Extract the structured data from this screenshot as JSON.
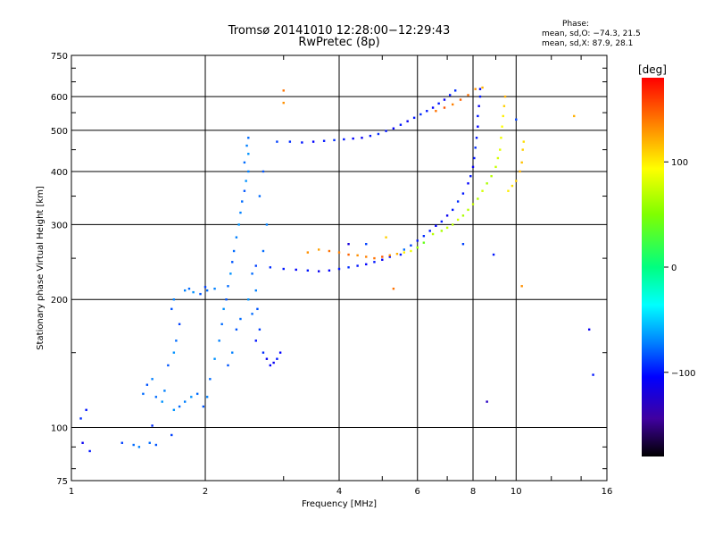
{
  "chart_data": {
    "type": "scatter",
    "title": "Tromsø 20141010 12:28:00−12:29:43",
    "subtitle": "RwPretec (8p)",
    "xlabel": "Frequency [MHz]",
    "ylabel": "Stationary phase Virtual Height [km]",
    "x_scale": "log",
    "y_scale": "log",
    "xlim": [
      1,
      16
    ],
    "ylim": [
      75,
      750
    ],
    "grid": true,
    "x_ticks": [
      1,
      2,
      4,
      6,
      8,
      10,
      16
    ],
    "x_tick_labels": [
      "1",
      "2",
      "4",
      "6",
      "8",
      "10",
      "16"
    ],
    "y_ticks": [
      75,
      100,
      200,
      300,
      400,
      500,
      600,
      750
    ],
    "y_tick_labels": [
      "75",
      "100",
      "200",
      "300",
      "400",
      "500",
      "600",
      "750"
    ],
    "colorbar": {
      "label": "[deg]",
      "range": [
        -180,
        180
      ],
      "tick_values": [
        100,
        0,
        -100
      ],
      "tick_labels": [
        "100",
        "0",
        "−100"
      ],
      "colors": [
        "#ff0000",
        "#ff8000",
        "#ffff00",
        "#80ff00",
        "#00ff80",
        "#00ffff",
        "#0080ff",
        "#0000ff",
        "#4000a0",
        "#000000"
      ]
    },
    "phase_stats": {
      "heading": "Phase:",
      "o_mode": "mean, sd,O: −74.3, 21.5",
      "x_mode": "mean, sd,X:  87.9, 28.1"
    },
    "series": [
      {
        "points": [
          [
            1.05,
            105,
            -95
          ],
          [
            1.08,
            110,
            -100
          ],
          [
            1.06,
            92,
            -110
          ],
          [
            1.1,
            88,
            -100
          ],
          [
            1.3,
            92,
            -90
          ],
          [
            1.38,
            91,
            -80
          ],
          [
            1.42,
            90,
            -75
          ],
          [
            1.5,
            92,
            -80
          ],
          [
            1.55,
            91,
            -85
          ],
          [
            1.68,
            96,
            -90
          ],
          [
            1.52,
            101,
            -95
          ],
          [
            1.45,
            120,
            -80
          ],
          [
            1.48,
            126,
            -85
          ],
          [
            1.52,
            130,
            -75
          ],
          [
            1.55,
            118,
            -80
          ],
          [
            1.6,
            115,
            -70
          ],
          [
            1.62,
            122,
            -75
          ],
          [
            1.65,
            140,
            -85
          ],
          [
            1.7,
            150,
            -70
          ],
          [
            1.72,
            160,
            -80
          ],
          [
            1.75,
            175,
            -90
          ],
          [
            1.68,
            190,
            -85
          ],
          [
            1.7,
            200,
            -75
          ],
          [
            1.8,
            210,
            -75
          ],
          [
            1.84,
            212,
            -80
          ],
          [
            1.88,
            208,
            -70
          ],
          [
            1.95,
            206,
            -85
          ],
          [
            2.02,
            210,
            -80
          ],
          [
            2.1,
            212,
            -75
          ],
          [
            2.0,
            214,
            -90
          ],
          [
            1.7,
            110,
            -70
          ],
          [
            1.75,
            112,
            -80
          ],
          [
            1.8,
            115,
            -75
          ],
          [
            1.86,
            118,
            -70
          ],
          [
            1.92,
            120,
            -80
          ],
          [
            1.98,
            112,
            -85
          ],
          [
            2.02,
            118,
            -75
          ],
          [
            2.05,
            130,
            -80
          ],
          [
            2.1,
            145,
            -70
          ],
          [
            2.15,
            160,
            -75
          ],
          [
            2.18,
            175,
            -80
          ],
          [
            2.2,
            190,
            -70
          ],
          [
            2.23,
            200,
            -85
          ],
          [
            2.25,
            215,
            -80
          ],
          [
            2.28,
            230,
            -70
          ],
          [
            2.3,
            245,
            -85
          ],
          [
            2.32,
            260,
            -80
          ],
          [
            2.35,
            280,
            -75
          ],
          [
            2.38,
            300,
            -70
          ],
          [
            2.4,
            320,
            -75
          ],
          [
            2.42,
            340,
            -80
          ],
          [
            2.45,
            360,
            -85
          ],
          [
            2.47,
            380,
            -70
          ],
          [
            2.5,
            400,
            -75
          ],
          [
            2.45,
            420,
            -80
          ],
          [
            2.5,
            440,
            -70
          ],
          [
            2.48,
            460,
            -75
          ],
          [
            2.5,
            480,
            -80
          ],
          [
            2.55,
            230,
            -80
          ],
          [
            2.6,
            210,
            -75
          ],
          [
            2.62,
            190,
            -85
          ],
          [
            2.65,
            170,
            -90
          ],
          [
            2.6,
            160,
            -100
          ],
          [
            2.7,
            150,
            -95
          ],
          [
            2.75,
            145,
            -110
          ],
          [
            2.8,
            140,
            -105
          ],
          [
            2.85,
            142,
            -110
          ],
          [
            2.9,
            145,
            -100
          ],
          [
            2.95,
            150,
            -105
          ],
          [
            2.7,
            260,
            -80
          ],
          [
            2.75,
            300,
            -75
          ],
          [
            2.65,
            350,
            -80
          ],
          [
            2.7,
            400,
            -85
          ],
          [
            2.35,
            170,
            -85
          ],
          [
            2.4,
            180,
            -80
          ],
          [
            2.3,
            150,
            -75
          ],
          [
            2.25,
            140,
            -85
          ],
          [
            2.55,
            185,
            -80
          ],
          [
            2.5,
            200,
            -70
          ],
          [
            2.6,
            240,
            -90
          ],
          [
            2.8,
            238,
            -95
          ],
          [
            3.0,
            236,
            -100
          ],
          [
            3.2,
            235,
            -105
          ],
          [
            3.4,
            234,
            -100
          ],
          [
            3.6,
            233,
            -110
          ],
          [
            3.8,
            234,
            -105
          ],
          [
            4.0,
            236,
            -100
          ],
          [
            4.2,
            238,
            -95
          ],
          [
            4.4,
            240,
            -100
          ],
          [
            4.6,
            242,
            -105
          ],
          [
            4.8,
            245,
            -100
          ],
          [
            5.0,
            248,
            -110
          ],
          [
            5.2,
            252,
            -105
          ],
          [
            5.5,
            255,
            -100
          ],
          [
            3.4,
            258,
            130
          ],
          [
            3.6,
            262,
            125
          ],
          [
            3.8,
            260,
            140
          ],
          [
            4.0,
            258,
            135
          ],
          [
            4.2,
            255,
            145
          ],
          [
            4.4,
            254,
            130
          ],
          [
            4.6,
            252,
            135
          ],
          [
            4.8,
            250,
            140
          ],
          [
            5.0,
            252,
            150
          ],
          [
            5.2,
            254,
            130
          ],
          [
            5.4,
            256,
            120
          ],
          [
            5.6,
            258,
            100
          ],
          [
            5.8,
            260,
            90
          ],
          [
            6.0,
            265,
            60
          ],
          [
            6.2,
            272,
            40
          ],
          [
            5.6,
            262,
            -80
          ],
          [
            5.8,
            268,
            -90
          ],
          [
            6.0,
            275,
            -100
          ],
          [
            6.2,
            282,
            -95
          ],
          [
            6.4,
            290,
            -100
          ],
          [
            6.6,
            298,
            -105
          ],
          [
            6.8,
            305,
            -100
          ],
          [
            7.0,
            315,
            -110
          ],
          [
            7.2,
            325,
            -100
          ],
          [
            7.4,
            340,
            -95
          ],
          [
            7.6,
            355,
            -100
          ],
          [
            7.8,
            375,
            -105
          ],
          [
            7.9,
            390,
            -100
          ],
          [
            8.0,
            410,
            -110
          ],
          [
            8.05,
            430,
            -100
          ],
          [
            8.1,
            455,
            -95
          ],
          [
            8.15,
            480,
            -100
          ],
          [
            8.2,
            510,
            -105
          ],
          [
            8.2,
            540,
            -100
          ],
          [
            8.25,
            570,
            -110
          ],
          [
            8.3,
            600,
            -100
          ],
          [
            8.3,
            625,
            -105
          ],
          [
            6.5,
            285,
            70
          ],
          [
            6.8,
            290,
            65
          ],
          [
            7.0,
            295,
            75
          ],
          [
            7.2,
            300,
            70
          ],
          [
            7.4,
            308,
            80
          ],
          [
            7.6,
            315,
            65
          ],
          [
            7.8,
            325,
            70
          ],
          [
            8.0,
            335,
            75
          ],
          [
            8.2,
            345,
            70
          ],
          [
            8.4,
            360,
            80
          ],
          [
            8.6,
            375,
            65
          ],
          [
            8.8,
            390,
            70
          ],
          [
            9.0,
            410,
            75
          ],
          [
            9.1,
            430,
            80
          ],
          [
            9.2,
            450,
            85
          ],
          [
            9.25,
            480,
            90
          ],
          [
            9.3,
            510,
            95
          ],
          [
            9.35,
            540,
            100
          ],
          [
            9.4,
            570,
            110
          ],
          [
            9.45,
            600,
            120
          ],
          [
            9.6,
            360,
            100
          ],
          [
            9.8,
            370,
            105
          ],
          [
            10.0,
            380,
            110
          ],
          [
            10.2,
            400,
            120
          ],
          [
            10.3,
            420,
            115
          ],
          [
            10.35,
            450,
            110
          ],
          [
            10.4,
            470,
            105
          ],
          [
            2.9,
            470,
            -90
          ],
          [
            3.1,
            470,
            -95
          ],
          [
            3.3,
            468,
            -100
          ],
          [
            3.5,
            470,
            -105
          ],
          [
            3.7,
            472,
            -100
          ],
          [
            3.9,
            474,
            -95
          ],
          [
            4.1,
            476,
            -100
          ],
          [
            4.3,
            478,
            -105
          ],
          [
            4.5,
            480,
            -110
          ],
          [
            4.7,
            485,
            -100
          ],
          [
            4.9,
            490,
            -95
          ],
          [
            5.1,
            498,
            -100
          ],
          [
            5.3,
            505,
            -105
          ],
          [
            5.5,
            515,
            -100
          ],
          [
            5.7,
            525,
            -110
          ],
          [
            5.9,
            535,
            -100
          ],
          [
            6.1,
            545,
            -95
          ],
          [
            6.3,
            555,
            -100
          ],
          [
            6.5,
            565,
            -105
          ],
          [
            6.7,
            578,
            -100
          ],
          [
            6.9,
            590,
            -110
          ],
          [
            7.1,
            605,
            -100
          ],
          [
            7.3,
            620,
            -95
          ],
          [
            6.6,
            555,
            140
          ],
          [
            6.9,
            565,
            150
          ],
          [
            7.2,
            575,
            135
          ],
          [
            7.5,
            590,
            145
          ],
          [
            7.8,
            605,
            140
          ],
          [
            8.1,
            625,
            130
          ],
          [
            8.4,
            630,
            120
          ],
          [
            3.0,
            620,
            140
          ],
          [
            3.0,
            580,
            130
          ],
          [
            5.3,
            212,
            140
          ],
          [
            10.3,
            215,
            130
          ],
          [
            13.5,
            540,
            120
          ],
          [
            14.6,
            170,
            -110
          ],
          [
            14.9,
            133,
            -100
          ],
          [
            8.6,
            115,
            -130
          ],
          [
            7.6,
            270,
            -90
          ],
          [
            4.2,
            270,
            -120
          ],
          [
            4.6,
            270,
            -90
          ],
          [
            5.1,
            280,
            110
          ],
          [
            8.9,
            255,
            -100
          ],
          [
            10.0,
            530,
            -90
          ]
        ]
      }
    ]
  }
}
